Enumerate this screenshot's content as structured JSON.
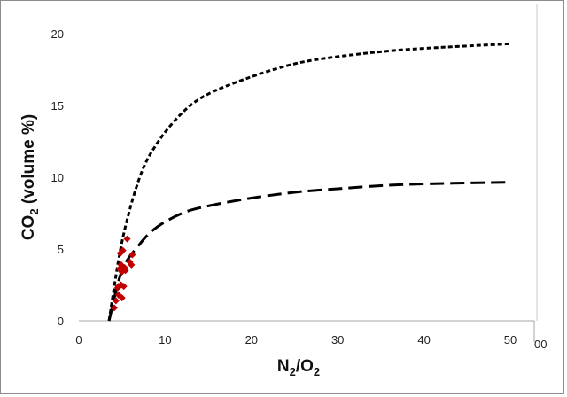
{
  "chart_data": {
    "type": "scatter",
    "xlabel": {
      "main": "N",
      "sub1": "2",
      "mid": "/O",
      "sub2": "2"
    },
    "ylabel": {
      "main": "CO",
      "sub": "2",
      "rest": " (volume %)"
    },
    "xlim": [
      0,
      50
    ],
    "ylim": [
      0,
      20
    ],
    "x_ticks": [
      "0",
      "10",
      "20",
      "30",
      "40",
      "50"
    ],
    "y_ticks": [
      "0",
      "5",
      "10",
      "15",
      "20"
    ],
    "clipped_tick_label": "00",
    "grid": false,
    "legend": "none",
    "colors": {
      "points": "#c00000",
      "lines": "#000000"
    },
    "series": [
      {
        "kind": "line",
        "style": "short-dash",
        "x": [
          3.5,
          5,
          7,
          9,
          12,
          15,
          20,
          25,
          30,
          38,
          50
        ],
        "y": [
          0,
          5.5,
          9.9,
          12.3,
          14.5,
          15.8,
          17.0,
          17.9,
          18.4,
          18.9,
          19.3
        ]
      },
      {
        "kind": "line",
        "style": "long-dash",
        "x": [
          3.5,
          5,
          7,
          9,
          12,
          15,
          20,
          25,
          30,
          38,
          50
        ],
        "y": [
          0,
          3.5,
          5.3,
          6.5,
          7.5,
          8.0,
          8.55,
          8.95,
          9.2,
          9.5,
          9.65
        ]
      },
      {
        "kind": "scatter",
        "marker": "diamond",
        "x": [
          4.1,
          4.3,
          4.5,
          4.6,
          4.7,
          4.8,
          4.9,
          5.0,
          5.0,
          5.1,
          5.2,
          5.3,
          5.6,
          5.9,
          6.1,
          6.2,
          4.6,
          4.9,
          5.4
        ],
        "y": [
          0.9,
          1.4,
          2.3,
          2.4,
          3.6,
          4.7,
          3.9,
          1.6,
          3.4,
          4.9,
          2.4,
          3.7,
          5.7,
          4.1,
          3.9,
          4.6,
          1.8,
          2.5,
          3.5
        ]
      }
    ]
  }
}
